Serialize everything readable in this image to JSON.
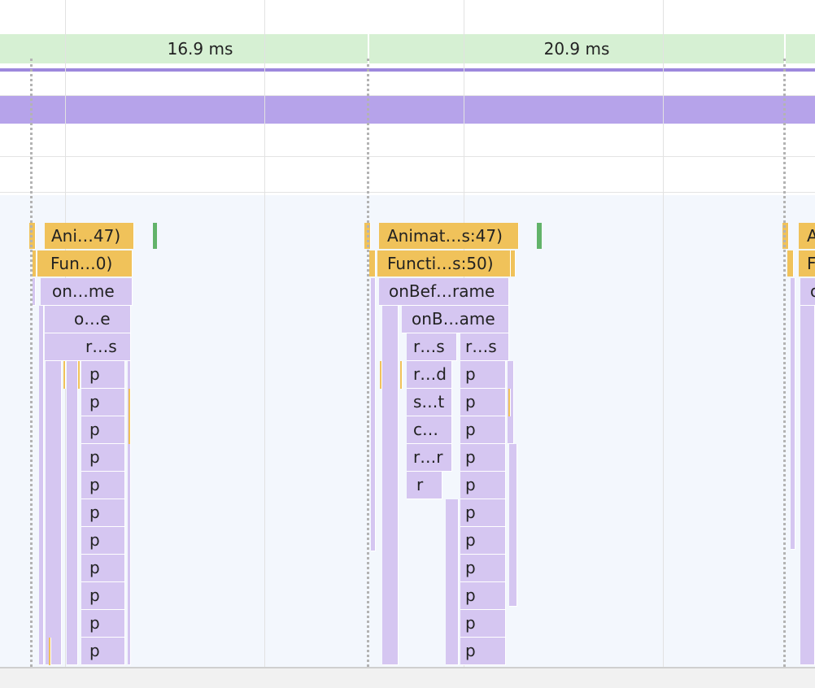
{
  "frames": [
    {
      "duration": "16.9 ms"
    },
    {
      "duration": "20.9 ms"
    }
  ],
  "colors": {
    "frame_bar": "#d6f0d3",
    "animation_track": "#b6a3ea",
    "scripting_yellow": "#f0c25a",
    "rendering_purple": "#d5c6f1",
    "paint_green": "#62b36a"
  },
  "flame": {
    "group1": {
      "animation_frame": "Ani…47)",
      "function_call": "Fun…0)",
      "l2": "on…me",
      "l3": "o…e",
      "l4": "r…s",
      "repeat": "p"
    },
    "group2": {
      "animation_frame": "Animat…s:47)",
      "function_call": "Functi…s:50)",
      "l2": "onBef…rame",
      "l3": "onB…ame",
      "l4a": "r…s",
      "l4b": "r…s",
      "l5": "r…d",
      "l6": "s…t",
      "l7": "c…",
      "l8": "r…r",
      "l9": "r",
      "repeat": "p"
    },
    "group3": {
      "animation_frame": "A",
      "function_call": "F",
      "l2": "o"
    }
  }
}
